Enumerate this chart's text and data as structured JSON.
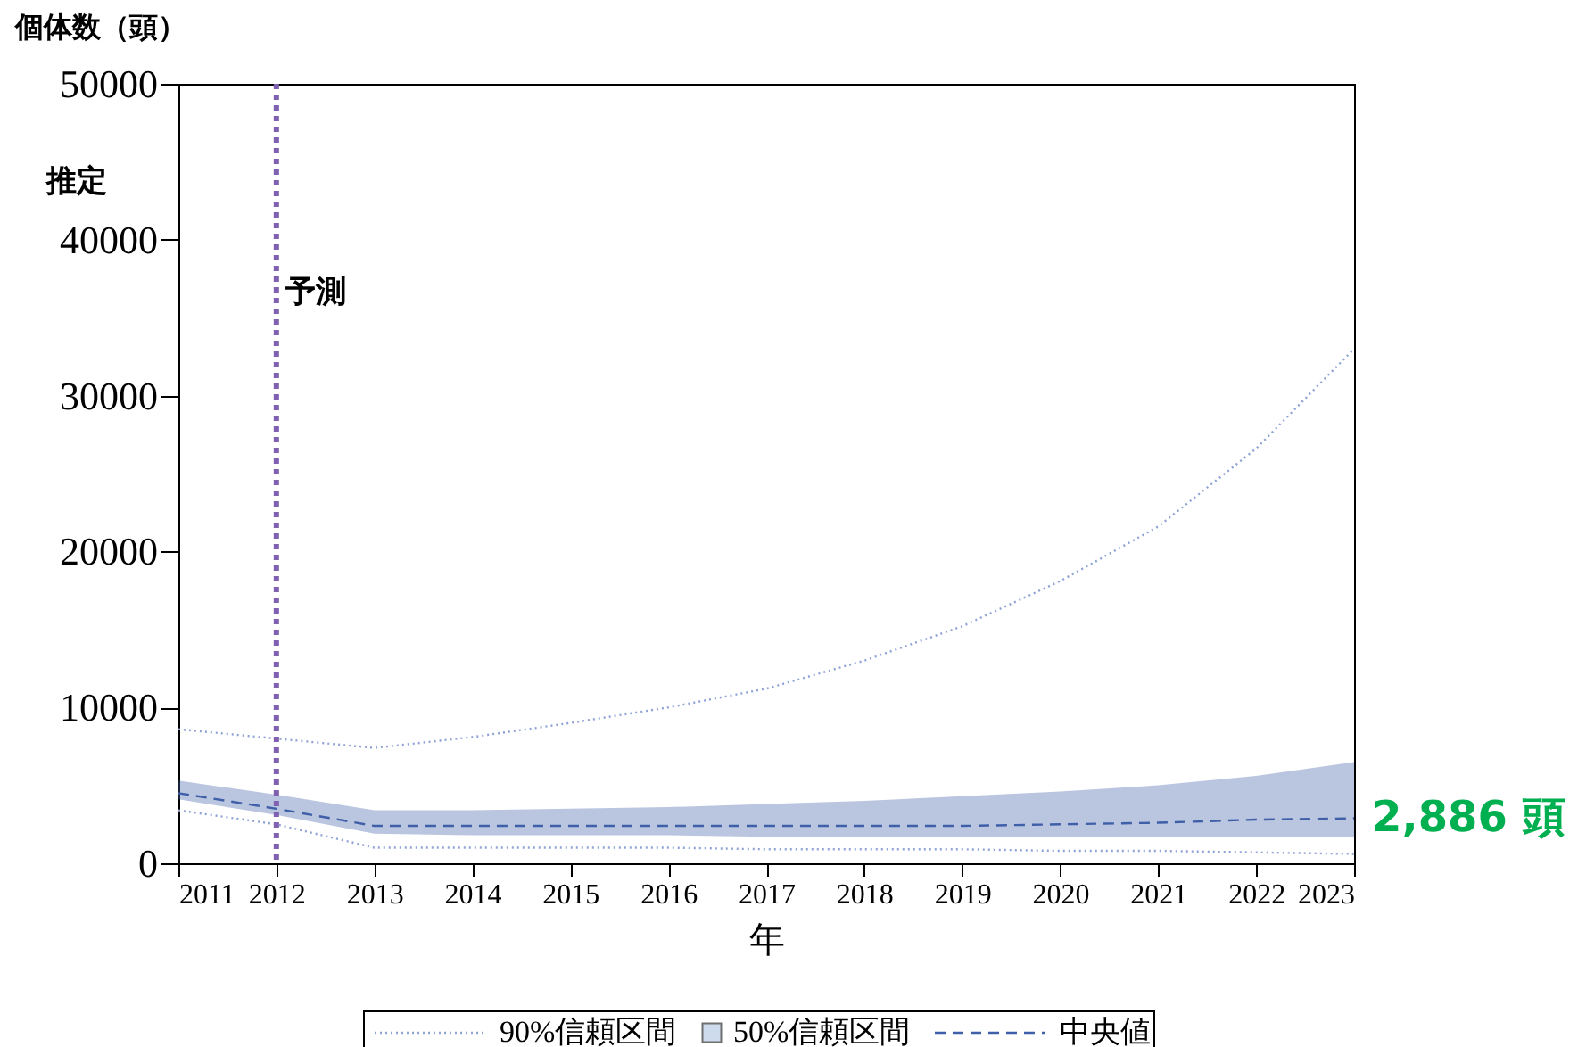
{
  "chart_data": {
    "type": "line",
    "xlabel": "年",
    "ylabel": "個体数（頭）",
    "x": [
      2011,
      2012,
      2013,
      2014,
      2015,
      2016,
      2017,
      2018,
      2019,
      2020,
      2021,
      2022,
      2023
    ],
    "xlim": [
      2011,
      2023
    ],
    "xticks": [
      2011,
      2012,
      2013,
      2014,
      2015,
      2016,
      2017,
      2018,
      2019,
      2020,
      2021,
      2022,
      2023
    ],
    "ylim": [
      0,
      50000
    ],
    "yticks": [
      0,
      10000,
      20000,
      30000,
      40000,
      50000
    ],
    "grid": false,
    "legend": "bottom",
    "series": [
      {
        "name": "90%信頼区間",
        "line_style": "dotted",
        "color": "#8fa3d6",
        "values": [
          8600,
          8000,
          7400,
          8100,
          9000,
          10000,
          11200,
          13000,
          15200,
          18100,
          21600,
          26600,
          33000
        ]
      },
      {
        "line_style": "dotted",
        "color": "#8fa3d6",
        "values": [
          3400,
          2500,
          1000,
          1000,
          1000,
          1000,
          900,
          900,
          900,
          800,
          800,
          700,
          600
        ]
      },
      {
        "name": "50%信頼区間",
        "type": "area",
        "color": "#b8cce4",
        "values": [
          null,
          null,
          null,
          null,
          null,
          null,
          null,
          null,
          null,
          null,
          null,
          null,
          null
        ]
      },
      {
        "name": "中央値",
        "line_style": "dashed",
        "color": "#3f5fa8",
        "values": [
          4500,
          3500,
          2400,
          2400,
          2400,
          2400,
          2400,
          2400,
          2400,
          2500,
          2600,
          2800,
          2886
        ],
        "lower": [
          4100,
          3100,
          1900,
          1800,
          1800,
          1800,
          1700,
          1700,
          1700,
          1700,
          1700,
          1700,
          1700
        ],
        "upper": [
          5300,
          4400,
          3400,
          3400,
          3500,
          3600,
          3800,
          4000,
          4300,
          4600,
          5000,
          5600,
          6500
        ]
      }
    ],
    "ref_lines": [
      {
        "axis": "x",
        "value": 2012,
        "color": "#8060b0",
        "line_style": "dotted"
      }
    ],
    "annotations": [
      "推定",
      "予測",
      {
        "text": "2,886 頭",
        "x": 2023,
        "y": 2886
      }
    ]
  }
}
